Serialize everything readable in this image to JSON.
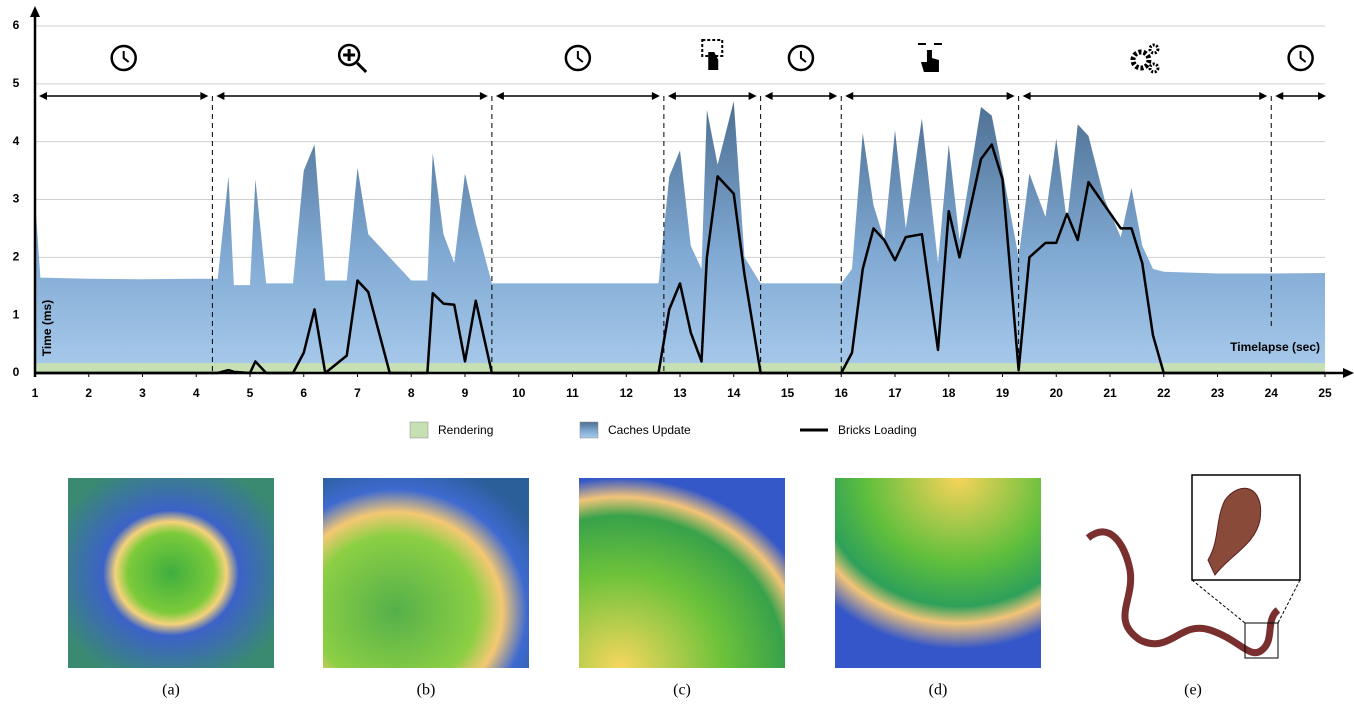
{
  "chart_data": {
    "type": "area",
    "x": [
      1.0,
      1.1,
      2,
      3,
      4,
      4.4,
      4.6,
      4.7,
      5.0,
      5.1,
      5.3,
      5.8,
      6.0,
      6.2,
      6.4,
      6.8,
      7.0,
      7.2,
      7.6,
      8.0,
      8.3,
      8.4,
      8.6,
      8.8,
      9.0,
      9.2,
      9.5,
      10,
      11,
      12,
      12.6,
      12.8,
      13.0,
      13.2,
      13.4,
      13.5,
      13.7,
      14.0,
      14.2,
      14.5,
      15,
      16,
      16.2,
      16.4,
      16.6,
      16.8,
      17.0,
      17.2,
      17.5,
      17.8,
      18.0,
      18.2,
      18.6,
      18.8,
      19.0,
      19.3,
      19.5,
      19.8,
      20.0,
      20.2,
      20.4,
      20.6,
      20.9,
      21.2,
      21.4,
      21.6,
      21.8,
      22,
      23,
      24,
      25
    ],
    "series": [
      {
        "name": "Rendering",
        "type": "area",
        "color": "#c6e0b4",
        "values": [
          0.17,
          0.17,
          0.17,
          0.17,
          0.17,
          0.17,
          0.17,
          0.17,
          0.17,
          0.17,
          0.17,
          0.17,
          0.17,
          0.17,
          0.17,
          0.17,
          0.17,
          0.17,
          0.17,
          0.17,
          0.17,
          0.17,
          0.17,
          0.17,
          0.17,
          0.17,
          0.17,
          0.17,
          0.17,
          0.17,
          0.17,
          0.17,
          0.17,
          0.17,
          0.17,
          0.17,
          0.17,
          0.17,
          0.17,
          0.17,
          0.17,
          0.17,
          0.17,
          0.17,
          0.17,
          0.17,
          0.17,
          0.17,
          0.17,
          0.17,
          0.17,
          0.17,
          0.17,
          0.17,
          0.17,
          0.17,
          0.17,
          0.17,
          0.17,
          0.17,
          0.17,
          0.17,
          0.17,
          0.17,
          0.17,
          0.17,
          0.17,
          0.17,
          0.17,
          0.17,
          0.17
        ]
      },
      {
        "name": "Caches Update",
        "type": "area",
        "color": "#7ea6cf",
        "values": [
          3.0,
          1.65,
          1.63,
          1.62,
          1.63,
          1.63,
          3.4,
          1.52,
          1.52,
          3.35,
          1.55,
          1.55,
          3.5,
          3.95,
          1.6,
          1.6,
          3.55,
          2.4,
          2.0,
          1.6,
          1.6,
          3.8,
          2.4,
          1.9,
          3.45,
          2.6,
          1.55,
          1.55,
          1.55,
          1.55,
          1.55,
          3.4,
          3.85,
          2.2,
          1.8,
          4.55,
          3.6,
          4.7,
          2.0,
          1.55,
          1.55,
          1.55,
          1.8,
          4.15,
          2.9,
          2.3,
          4.2,
          2.5,
          4.4,
          1.9,
          3.95,
          2.3,
          4.6,
          4.45,
          3.5,
          2.0,
          3.45,
          2.7,
          4.05,
          2.6,
          4.3,
          4.1,
          3.0,
          2.35,
          3.2,
          2.2,
          1.8,
          1.75,
          1.72,
          1.72,
          1.73
        ]
      },
      {
        "name": "Bricks Loading",
        "type": "line",
        "color": "#000000",
        "values": [
          0,
          0,
          0,
          0,
          0,
          0,
          0.05,
          0.02,
          0,
          0.2,
          0,
          0,
          0.35,
          1.1,
          0,
          0.3,
          1.6,
          1.4,
          0,
          0,
          0,
          1.38,
          1.2,
          1.18,
          0.2,
          1.25,
          0,
          0,
          0,
          0,
          0,
          1.1,
          1.55,
          0.7,
          0.2,
          2.0,
          3.4,
          3.1,
          1.7,
          0,
          0,
          0,
          0.35,
          1.8,
          2.5,
          2.3,
          1.95,
          2.35,
          2.4,
          0.4,
          2.8,
          2.0,
          3.7,
          3.95,
          3.35,
          0.05,
          2.0,
          2.25,
          2.25,
          2.75,
          2.3,
          3.3,
          2.9,
          2.5,
          2.5,
          1.9,
          0.65,
          0,
          0,
          0,
          0
        ]
      }
    ],
    "xlim": [
      1,
      25
    ],
    "ylim": [
      0,
      6
    ],
    "xticks": [
      1,
      2,
      3,
      4,
      5,
      6,
      7,
      8,
      9,
      10,
      11,
      12,
      13,
      14,
      15,
      16,
      17,
      18,
      19,
      20,
      21,
      22,
      23,
      24,
      25
    ],
    "yticks": [
      0,
      1,
      2,
      3,
      4,
      5,
      6
    ],
    "grid": true,
    "ylabel": "Time (ms)",
    "xlabel": "Timelapse (sec)",
    "phase_boundaries": [
      4.3,
      9.5,
      12.7,
      14.5,
      16.0,
      19.3,
      24.0
    ]
  },
  "panels": [
    "(a)",
    "(b)",
    "(c)",
    "(d)",
    "(e)"
  ]
}
